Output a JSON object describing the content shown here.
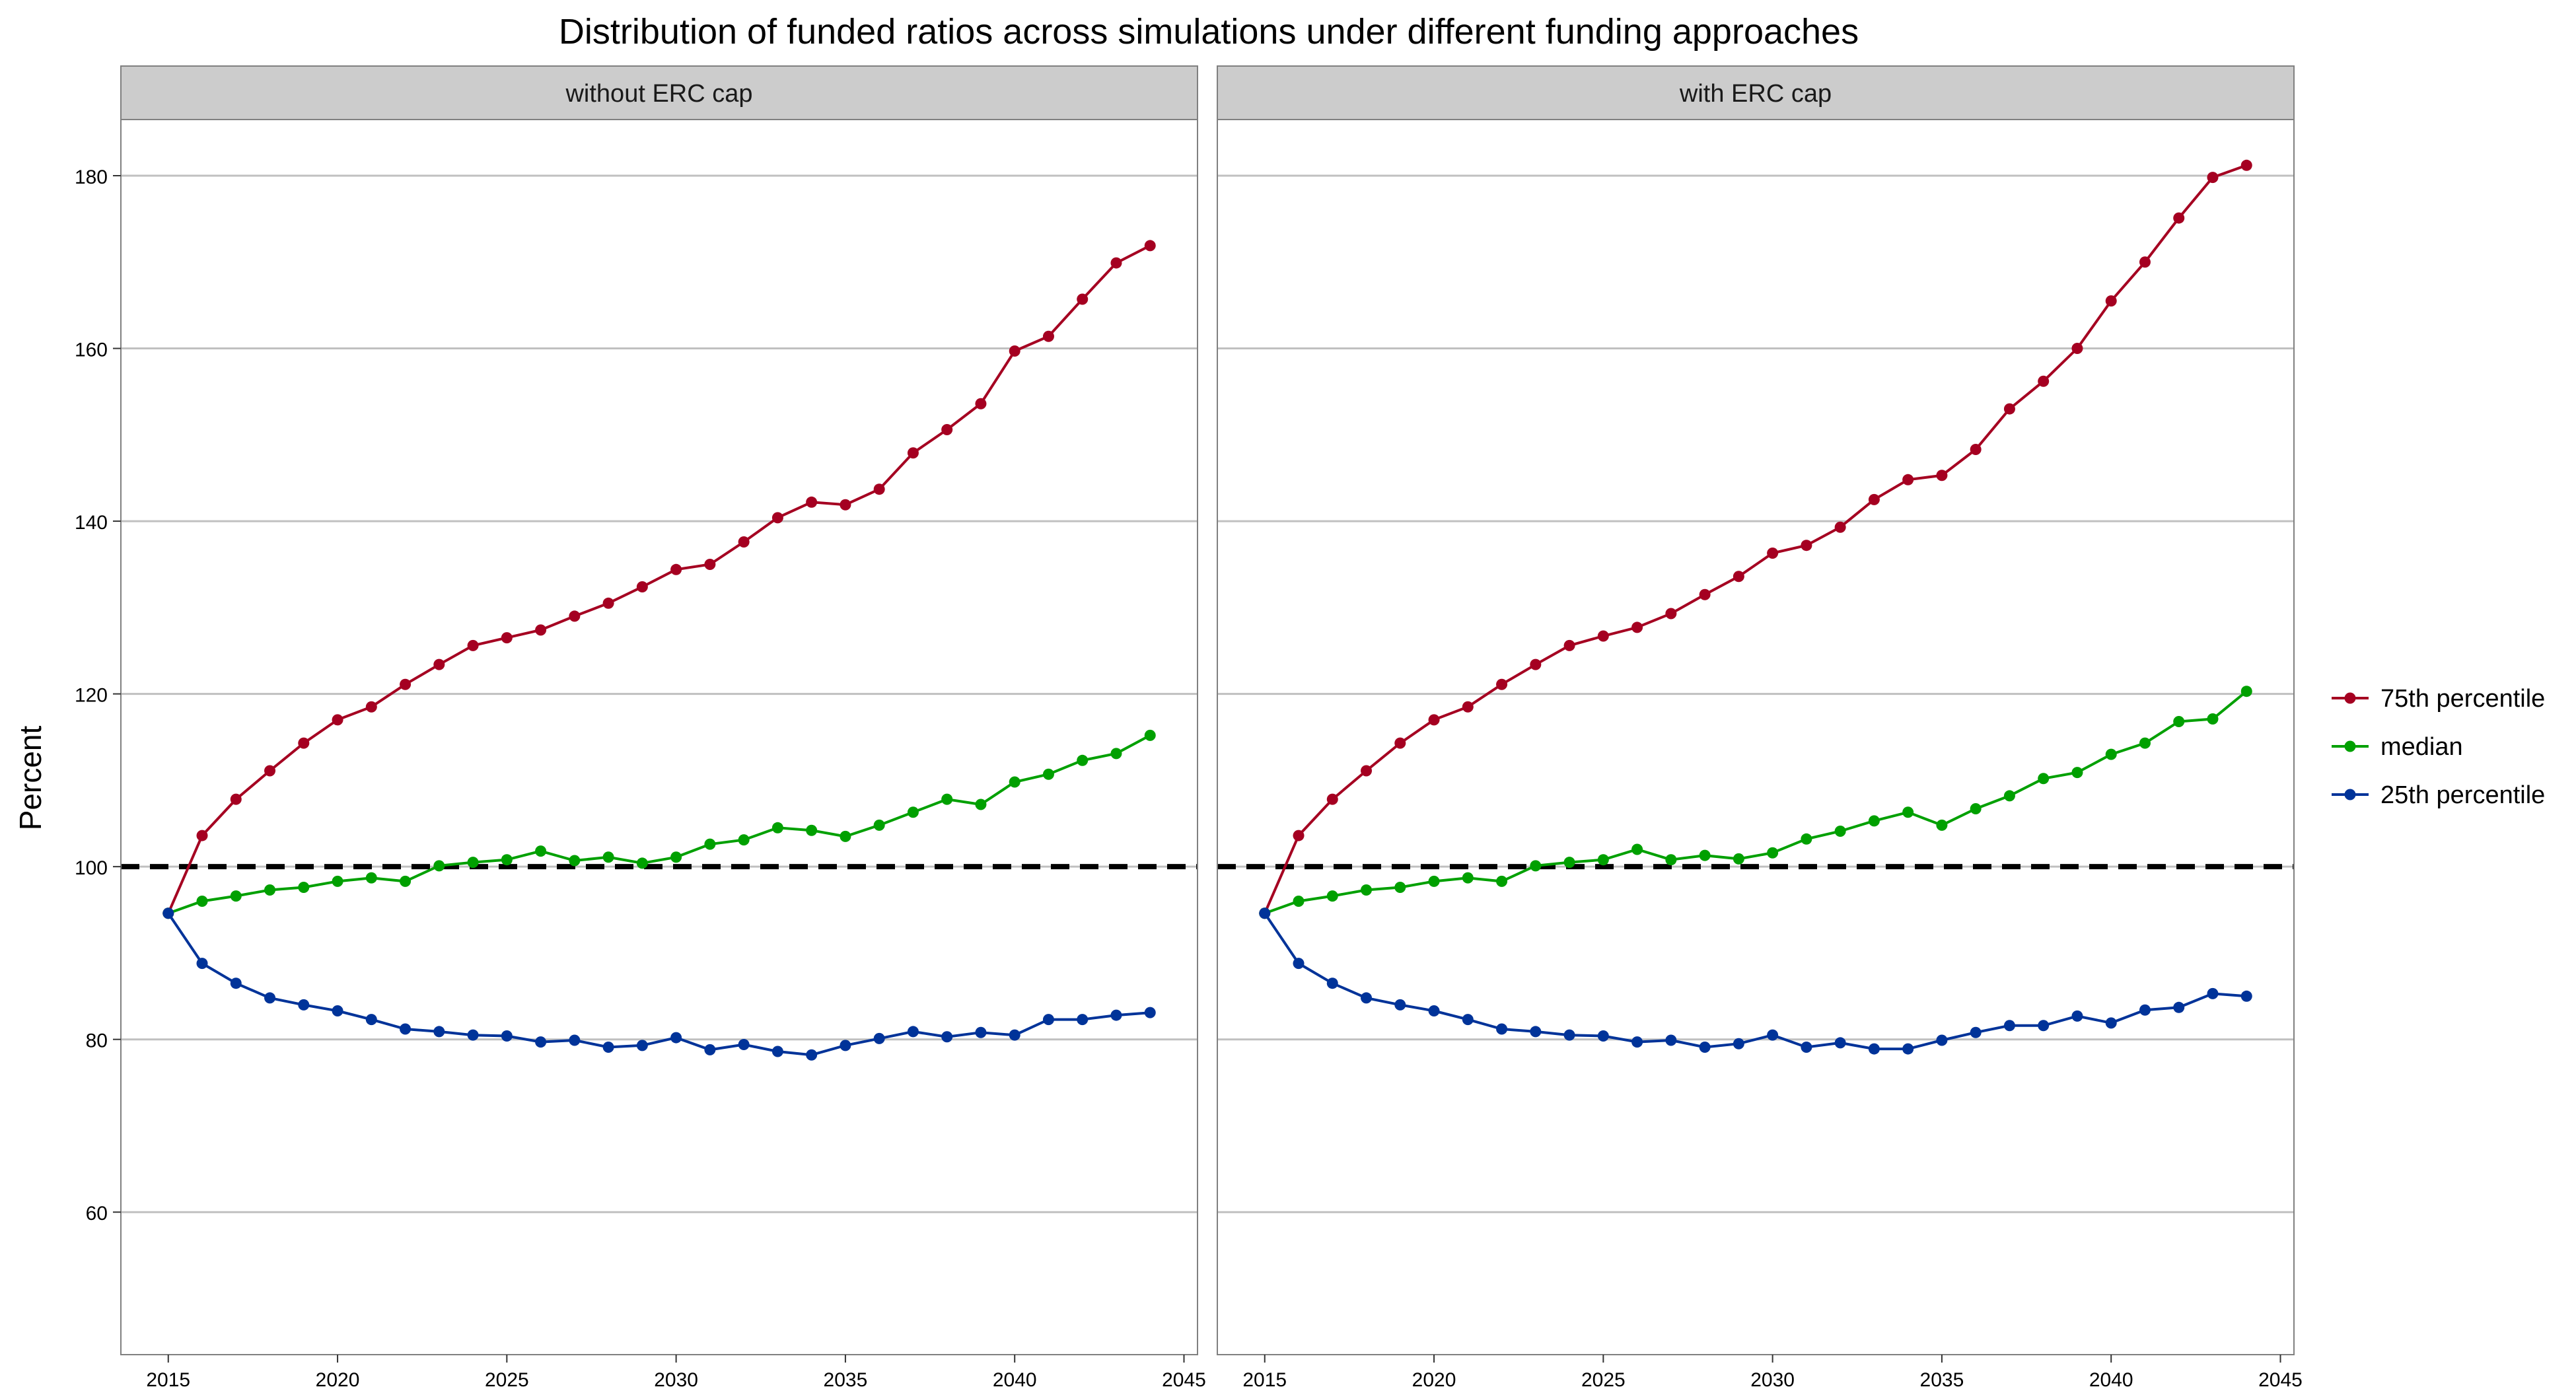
{
  "chart_data": {
    "type": "line",
    "title": "Distribution of funded ratios across simulations under different funding approaches",
    "ylabel": "Percent",
    "xlabel": "",
    "xlim": [
      2013.6,
      2045.4
    ],
    "ylim": [
      43.5,
      186.5
    ],
    "x_ticks": [
      2015,
      2020,
      2025,
      2030,
      2035,
      2040,
      2045
    ],
    "y_ticks": [
      60,
      80,
      100,
      120,
      140,
      160,
      180
    ],
    "reference_line": {
      "y": 100,
      "style": "dashed",
      "color": "#000000"
    },
    "grid": true,
    "legend_position": "right",
    "colors": {
      "75th percentile": "#a50021",
      "median": "#00a000",
      "25th percentile": "#003399"
    },
    "legend": [
      "75th percentile",
      "median",
      "25th percentile"
    ],
    "x": [
      2015,
      2016,
      2017,
      2018,
      2019,
      2020,
      2021,
      2022,
      2023,
      2024,
      2025,
      2026,
      2027,
      2028,
      2029,
      2030,
      2031,
      2032,
      2033,
      2034,
      2035,
      2036,
      2037,
      2038,
      2039,
      2040,
      2041,
      2042,
      2043,
      2044
    ],
    "panels": [
      {
        "strip": "without ERC cap",
        "series": [
          {
            "name": "75th percentile",
            "values": [
              94.6,
              103.6,
              107.8,
              111.1,
              114.3,
              117.0,
              118.5,
              121.1,
              123.4,
              125.6,
              126.5,
              127.4,
              129.0,
              130.5,
              132.4,
              134.4,
              135.0,
              137.6,
              140.4,
              142.2,
              141.9,
              143.7,
              147.9,
              150.6,
              153.6,
              159.7,
              161.4,
              165.7,
              169.9,
              171.9
            ]
          },
          {
            "name": "median",
            "values": [
              94.6,
              96.0,
              96.6,
              97.3,
              97.6,
              98.3,
              98.7,
              98.3,
              100.1,
              100.5,
              100.8,
              101.8,
              100.7,
              101.1,
              100.4,
              101.1,
              102.6,
              103.1,
              104.5,
              104.2,
              103.5,
              104.8,
              106.3,
              107.8,
              107.2,
              109.8,
              110.7,
              112.3,
              113.1,
              115.2
            ]
          },
          {
            "name": "25th percentile",
            "values": [
              94.6,
              88.8,
              86.5,
              84.8,
              84.0,
              83.3,
              82.3,
              81.2,
              80.9,
              80.5,
              80.4,
              79.7,
              79.9,
              79.1,
              79.3,
              80.2,
              78.8,
              79.4,
              78.6,
              78.2,
              79.3,
              80.1,
              80.9,
              80.3,
              80.8,
              80.5,
              82.3,
              82.3,
              82.8,
              83.1
            ]
          }
        ]
      },
      {
        "strip": "with ERC cap",
        "series": [
          {
            "name": "75th percentile",
            "values": [
              94.6,
              103.6,
              107.8,
              111.1,
              114.3,
              117.0,
              118.5,
              121.1,
              123.4,
              125.6,
              126.7,
              127.7,
              129.3,
              131.5,
              133.6,
              136.3,
              137.2,
              139.3,
              142.5,
              144.8,
              145.3,
              148.3,
              153.0,
              156.2,
              160.0,
              165.5,
              170.0,
              175.1,
              179.8,
              181.2
            ]
          },
          {
            "name": "median",
            "values": [
              94.6,
              96.0,
              96.6,
              97.3,
              97.6,
              98.3,
              98.7,
              98.3,
              100.1,
              100.5,
              100.8,
              102.0,
              100.8,
              101.3,
              100.9,
              101.6,
              103.2,
              104.1,
              105.3,
              106.3,
              104.8,
              106.7,
              108.2,
              110.2,
              110.9,
              113.0,
              114.3,
              116.8,
              117.1,
              120.3
            ]
          },
          {
            "name": "25th percentile",
            "values": [
              94.6,
              88.8,
              86.5,
              84.8,
              84.0,
              83.3,
              82.3,
              81.2,
              80.9,
              80.5,
              80.4,
              79.7,
              79.9,
              79.1,
              79.5,
              80.5,
              79.1,
              79.6,
              78.9,
              78.9,
              79.9,
              80.8,
              81.6,
              81.6,
              82.7,
              81.9,
              83.4,
              83.7,
              85.3,
              85.0
            ]
          }
        ]
      }
    ]
  }
}
